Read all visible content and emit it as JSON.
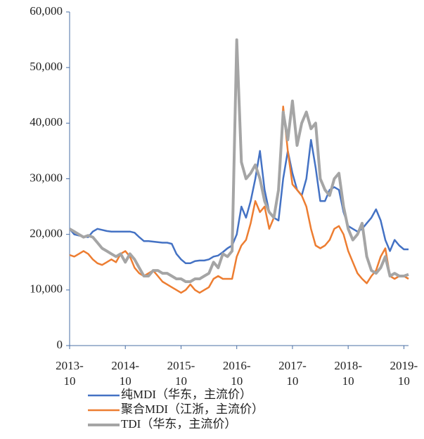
{
  "chart_data": {
    "type": "line",
    "categories": [
      "2013-10",
      null,
      null,
      null,
      null,
      null,
      null,
      null,
      null,
      null,
      null,
      null,
      "2014-10",
      null,
      null,
      null,
      null,
      null,
      null,
      null,
      null,
      null,
      null,
      null,
      "2015-10",
      null,
      null,
      null,
      null,
      null,
      null,
      null,
      null,
      null,
      null,
      null,
      "2016-10",
      null,
      null,
      null,
      null,
      null,
      null,
      null,
      null,
      null,
      null,
      null,
      "2017-10",
      null,
      null,
      null,
      null,
      null,
      null,
      null,
      null,
      null,
      null,
      null,
      "2018-10",
      null,
      null,
      null,
      null,
      null,
      null,
      null,
      null,
      null,
      null,
      null,
      "2019-10",
      null
    ],
    "series": [
      {
        "name": "纯MDI（华东，主流价）",
        "color": "#4472c4",
        "values": [
          21000,
          20000,
          19800,
          19600,
          19500,
          20500,
          21000,
          20800,
          20600,
          20500,
          20500,
          20500,
          20500,
          20500,
          20300,
          19500,
          18800,
          18800,
          18700,
          18600,
          18500,
          18500,
          18300,
          16500,
          15500,
          14800,
          14800,
          15200,
          15300,
          15300,
          15500,
          16000,
          16200,
          16800,
          17500,
          18000,
          20000,
          25000,
          23000,
          26000,
          30000,
          35000,
          28000,
          24000,
          23000,
          22500,
          30000,
          35000,
          31000,
          28000,
          27000,
          30000,
          37000,
          32000,
          26000,
          26000,
          28000,
          28500,
          28000,
          24000,
          21500,
          21000,
          20500,
          21000,
          22000,
          23000,
          24500,
          22500,
          19000,
          17000,
          19000,
          18000,
          17300,
          17300
        ]
      },
      {
        "name": "聚合MDI（江浙，主流价）",
        "color": "#ed7d31",
        "values": [
          16300,
          16000,
          16500,
          17000,
          16500,
          15500,
          14800,
          14500,
          15000,
          15500,
          15000,
          16500,
          17000,
          16000,
          14000,
          13000,
          12500,
          13000,
          13500,
          12500,
          11500,
          11000,
          10500,
          10000,
          9500,
          10000,
          11000,
          10000,
          9500,
          10000,
          10500,
          12000,
          12500,
          12000,
          12000,
          12000,
          16000,
          18000,
          19000,
          22000,
          26000,
          24000,
          25000,
          21000,
          23000,
          28000,
          43000,
          35000,
          29000,
          28000,
          27000,
          25000,
          21000,
          18000,
          17500,
          18000,
          19000,
          21000,
          21500,
          20000,
          17000,
          15000,
          13000,
          12000,
          11200,
          12500,
          13500,
          16000,
          17500,
          12500,
          12000,
          12500,
          12500,
          12000
        ]
      },
      {
        "name": "TDI（华东，主流价）",
        "color": "#a5a5a5",
        "values": [
          21000,
          20500,
          20000,
          19500,
          19800,
          19500,
          18500,
          17500,
          17000,
          16500,
          16000,
          16500,
          15000,
          16500,
          15500,
          14000,
          12500,
          12500,
          13500,
          13500,
          13000,
          13000,
          12500,
          12000,
          12000,
          11500,
          11500,
          12000,
          12000,
          12500,
          13000,
          15000,
          14000,
          16500,
          16000,
          17000,
          55000,
          33000,
          30000,
          31000,
          32500,
          30000,
          26000,
          24000,
          23000,
          28000,
          42000,
          37000,
          44000,
          36000,
          40000,
          42000,
          39000,
          40000,
          30000,
          28000,
          27000,
          30000,
          31000,
          25000,
          21000,
          19000,
          20000,
          22000,
          16000,
          13500,
          13000,
          14000,
          16000,
          12500,
          13000,
          12500,
          12500,
          12800
        ]
      }
    ],
    "ylim": [
      0,
      60000
    ],
    "yticks": [
      0,
      {
        "value": 10000,
        "label": "10,000"
      },
      {
        "value": 20000,
        "label": "20,000"
      },
      {
        "value": 30000,
        "label": "30,000"
      },
      {
        "value": 40000,
        "label": "40,000"
      },
      {
        "value": 50000,
        "label": "50,000"
      },
      {
        "value": 60000,
        "label": "60,000"
      }
    ],
    "grid": false
  }
}
